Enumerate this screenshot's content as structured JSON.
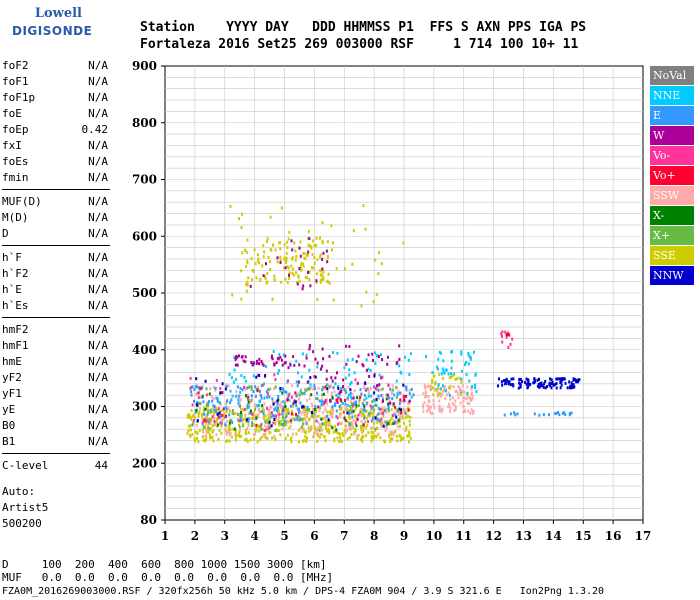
{
  "logo": {
    "line1": "Lowell",
    "line2": "DIGISONDE"
  },
  "header": {
    "row1": "Station    YYYY DAY   DDD HHMMSS P1  FFS S AXN PPS IGA PS",
    "row2": "Fortaleza 2016 Set25 269 003000 RSF     1 714 100 10+ 11"
  },
  "params_groups": [
    [
      {
        "label": "foF2",
        "value": "N/A"
      },
      {
        "label": "foF1",
        "value": "N/A"
      },
      {
        "label": "foF1p",
        "value": "N/A"
      },
      {
        "label": "foE",
        "value": "N/A"
      },
      {
        "label": "foEp",
        "value": "0.42"
      },
      {
        "label": "fxI",
        "value": "N/A"
      },
      {
        "label": "foEs",
        "value": "N/A"
      },
      {
        "label": "fmin",
        "value": "N/A"
      }
    ],
    [
      {
        "label": "MUF(D)",
        "value": "N/A"
      },
      {
        "label": "M(D)",
        "value": "N/A"
      },
      {
        "label": "D",
        "value": "N/A"
      }
    ],
    [
      {
        "label": "h`F",
        "value": "N/A"
      },
      {
        "label": "h`F2",
        "value": "N/A"
      },
      {
        "label": "h`E",
        "value": "N/A"
      },
      {
        "label": "h`Es",
        "value": "N/A"
      }
    ],
    [
      {
        "label": "hmF2",
        "value": "N/A"
      },
      {
        "label": "hmF1",
        "value": "N/A"
      },
      {
        "label": "hmE",
        "value": "N/A"
      },
      {
        "label": "yF2",
        "value": "N/A"
      },
      {
        "label": "yF1",
        "value": "N/A"
      },
      {
        "label": "yE",
        "value": "N/A"
      },
      {
        "label": "B0",
        "value": "N/A"
      },
      {
        "label": "B1",
        "value": "N/A"
      }
    ],
    [
      {
        "label": "C-level",
        "value": "44"
      }
    ]
  ],
  "auto": {
    "line1": "Auto:",
    "line2": "Artist5",
    "line3": "500200"
  },
  "legend": [
    {
      "label": "NoVal",
      "color": "#808080"
    },
    {
      "label": "NNE",
      "color": "#00ccff"
    },
    {
      "label": "E",
      "color": "#3399ff"
    },
    {
      "label": "W",
      "color": "#aa0099"
    },
    {
      "label": "Vo-",
      "color": "#ff3399"
    },
    {
      "label": "Vo+",
      "color": "#ff0033"
    },
    {
      "label": "SSW",
      "color": "#ffaaaa"
    },
    {
      "label": "X-",
      "color": "#008000"
    },
    {
      "label": "X+",
      "color": "#66bb44"
    },
    {
      "label": "SSE",
      "color": "#cccc00"
    },
    {
      "label": "NNW",
      "color": "#0000cc"
    }
  ],
  "bottom": {
    "d_row": "D     100  200  400  600  800 1000 1500 3000 [km]",
    "muf_row": "MUF   0.0  0.0  0.0  0.0  0.0  0.0  0.0  0.0 [MHz]",
    "footer": "FZA0M_2016269003000.RSF / 320fx256h 50 kHz 5.0 km / DPS-4 FZA0M 904 / 3.9 S 321.6 E   Ion2Png 1.3.20"
  },
  "chart_data": {
    "type": "scatter",
    "xlabel": "",
    "ylabel": "",
    "xlim": [
      1,
      17
    ],
    "ylim": [
      80,
      900
    ],
    "x_ticks": [
      1,
      2,
      3,
      4,
      5,
      6,
      7,
      8,
      9,
      10,
      11,
      12,
      13,
      14,
      15,
      16,
      17
    ],
    "y_ticks": [
      80,
      200,
      300,
      400,
      500,
      600,
      700,
      800,
      900
    ],
    "grid": true,
    "clusters": [
      {
        "series": "SSE",
        "x": [
          1.7,
          9.2
        ],
        "y": [
          240,
          300
        ],
        "n": 520
      },
      {
        "series": "SSW",
        "x": [
          2.0,
          9.2
        ],
        "y": [
          250,
          340
        ],
        "n": 320
      },
      {
        "series": "E",
        "x": [
          1.8,
          9.3
        ],
        "y": [
          270,
          340
        ],
        "n": 220
      },
      {
        "series": "NNE",
        "x": [
          3.0,
          9.4
        ],
        "y": [
          300,
          400
        ],
        "n": 100
      },
      {
        "series": "X+",
        "x": [
          1.8,
          9.0
        ],
        "y": [
          260,
          340
        ],
        "n": 90
      },
      {
        "series": "X-",
        "x": [
          2.0,
          9.0
        ],
        "y": [
          260,
          330
        ],
        "n": 40
      },
      {
        "series": "W",
        "x": [
          3.3,
          5.0
        ],
        "y": [
          375,
          392
        ],
        "n": 40
      },
      {
        "series": "W",
        "x": [
          5.0,
          9.2
        ],
        "y": [
          300,
          410
        ],
        "n": 70
      },
      {
        "series": "Vo-",
        "x": [
          1.8,
          9.2
        ],
        "y": [
          260,
          360
        ],
        "n": 60
      },
      {
        "series": "Vo+",
        "x": [
          2.0,
          9.2
        ],
        "y": [
          265,
          340
        ],
        "n": 30
      },
      {
        "series": "NNW",
        "x": [
          2.0,
          9.2
        ],
        "y": [
          265,
          360
        ],
        "n": 40
      },
      {
        "series": "SSE",
        "x": [
          3.6,
          6.6
        ],
        "y": [
          520,
          600
        ],
        "n": 140
      },
      {
        "series": "SSE",
        "x": [
          3.0,
          9.0
        ],
        "y": [
          470,
          660
        ],
        "n": 40
      },
      {
        "series": "W",
        "x": [
          3.8,
          6.4
        ],
        "y": [
          510,
          600
        ],
        "n": 25
      },
      {
        "series": "SSW",
        "x": [
          9.6,
          11.3
        ],
        "y": [
          290,
          340
        ],
        "n": 120
      },
      {
        "series": "NNE",
        "x": [
          9.7,
          11.4
        ],
        "y": [
          320,
          400
        ],
        "n": 50
      },
      {
        "series": "SSE",
        "x": [
          9.8,
          11.0
        ],
        "y": [
          320,
          360
        ],
        "n": 25
      },
      {
        "series": "NNW",
        "x": [
          12.1,
          14.9
        ],
        "y": [
          335,
          352
        ],
        "n": 110
      },
      {
        "series": "E",
        "x": [
          12.3,
          14.6
        ],
        "y": [
          287,
          292
        ],
        "n": 20
      },
      {
        "series": "Vo-",
        "x": [
          12.2,
          12.6
        ],
        "y": [
          398,
          440
        ],
        "n": 10
      },
      {
        "series": "Vo+",
        "x": [
          12.3,
          12.5
        ],
        "y": [
          418,
          436
        ],
        "n": 4
      }
    ]
  }
}
